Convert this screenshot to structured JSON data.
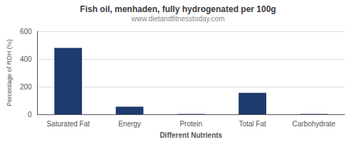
{
  "chart_data": {
    "type": "bar",
    "title": "Fish oil, menhaden, fully hydrogenated per 100g",
    "subtitle": "www.dietandfitnesstoday.com",
    "xlabel": "Different Nutrients",
    "ylabel": "Percentage of RDH (%)",
    "categories": [
      "Saturated Fat",
      "Energy",
      "Protein",
      "Total Fat",
      "Carbohydrate"
    ],
    "values": [
      480,
      55,
      2,
      155,
      2
    ],
    "color": "#1e3a6e",
    "ylim": [
      0,
      600
    ],
    "yticks": [
      0,
      200,
      400,
      600
    ],
    "grid": true
  }
}
